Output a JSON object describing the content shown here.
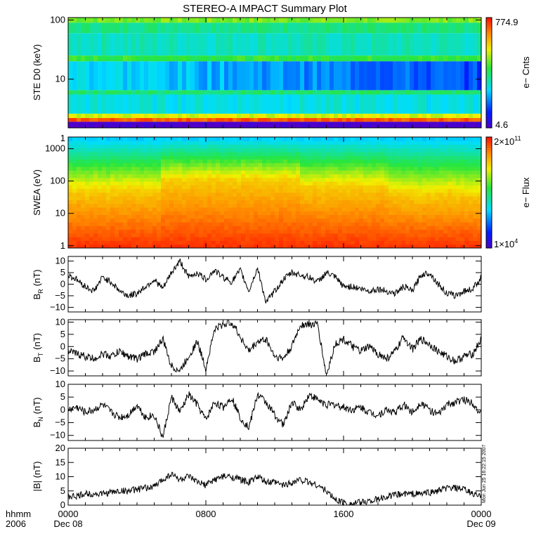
{
  "title": "STEREO-A IMPACT Summary Plot",
  "stamp": "Mon Jun 25 16:22:15 2007",
  "time_axis": {
    "row1_labels": [
      "hhmm",
      "0000",
      "0800",
      "1600",
      "0000"
    ],
    "row2_labels": [
      "2006",
      "Dec 08",
      "Dec 09"
    ],
    "range_hours": [
      0,
      24
    ]
  },
  "colors": {
    "trace": "#000000",
    "frame": "#000000"
  },
  "chart_data": [
    {
      "id": "ste",
      "type": "heatmap",
      "ylabel": "STE D0 (keV)",
      "yscale": "log",
      "ylim": [
        1.5,
        110
      ],
      "yticks": [
        "100",
        "10",
        "1"
      ],
      "ytick_values": [
        100,
        10,
        1
      ],
      "colorbar": {
        "label": "e− Cnts",
        "max_label": "774.9",
        "min_label": "4.6",
        "max": 774.9,
        "min": 4.6
      },
      "bands": [
        {
          "lo": 90,
          "hi": 110,
          "level": 0.62
        },
        {
          "lo": 60,
          "hi": 90,
          "level": 0.48
        },
        {
          "lo": 25,
          "hi": 60,
          "level": 0.42
        },
        {
          "lo": 20,
          "hi": 25,
          "level": 0.55
        },
        {
          "lo": 6.5,
          "hi": 20,
          "level": 0.25,
          "evolve": true
        },
        {
          "lo": 5.5,
          "hi": 6.5,
          "level": 0.5
        },
        {
          "lo": 2.6,
          "hi": 5.5,
          "level": 0.38
        },
        {
          "lo": 2.2,
          "hi": 2.6,
          "level": 0.7
        },
        {
          "lo": 1.9,
          "hi": 2.2,
          "level": 0.92
        },
        {
          "lo": 1.5,
          "hi": 1.9,
          "level": 0.0
        }
      ]
    },
    {
      "id": "swea",
      "type": "heatmap",
      "ylabel": "SWEA (eV)",
      "yscale": "log",
      "ylim": [
        0.85,
        2300
      ],
      "yticks": [
        "1000",
        "100",
        "10",
        "1"
      ],
      "ytick_values": [
        1000,
        100,
        10,
        1
      ],
      "colorbar": {
        "label": "e− Flux",
        "max_label": "2×10",
        "max_exp": "11",
        "min_label": "1×10",
        "min_exp": "4",
        "max": 200000000000.0,
        "min": 10000.0
      },
      "structure": [
        {
          "t": [
            0,
            5.5
          ],
          "peak_energy": 50
        },
        {
          "t": [
            5.5,
            13.5
          ],
          "peak_energy": 110
        },
        {
          "t": [
            13.5,
            18.5
          ],
          "peak_energy": 70
        },
        {
          "t": [
            18.5,
            24
          ],
          "peak_energy": 40
        }
      ]
    },
    {
      "id": "br",
      "type": "line",
      "ylabel": "B",
      "ylabel_sub": "R",
      "ylabel_unit": "(nT)",
      "ylim": [
        -12,
        12
      ],
      "yticks": [
        "10",
        "5",
        "0",
        "−5",
        "−10"
      ],
      "ytick_values": [
        10,
        5,
        0,
        -5,
        -10
      ],
      "x": [
        0,
        0.5,
        1,
        1.5,
        2,
        2.5,
        3,
        3.5,
        4,
        4.5,
        5,
        5.5,
        6,
        6.5,
        7,
        7.5,
        8,
        8.5,
        9,
        9.5,
        10,
        10.5,
        11,
        11.5,
        12,
        12.5,
        13,
        13.5,
        14,
        14.5,
        15,
        15.5,
        16,
        16.5,
        17,
        17.5,
        18,
        18.5,
        19,
        19.5,
        20,
        20.5,
        21,
        21.5,
        22,
        22.5,
        23,
        23.5,
        24
      ],
      "values": [
        4,
        2,
        -1,
        -3,
        3,
        1,
        -3,
        -5,
        -4,
        -1,
        2,
        -2,
        5,
        10,
        3,
        5,
        2,
        6,
        3,
        1,
        6,
        -3,
        7,
        -8,
        -3,
        2,
        5,
        4,
        3,
        1,
        5,
        3,
        -1,
        -1,
        -2,
        -3,
        -2,
        -3,
        -4,
        -1,
        -3,
        4,
        5,
        0,
        -4,
        -5,
        -3,
        -2,
        3
      ],
      "noise": 1.4
    },
    {
      "id": "bt",
      "type": "line",
      "ylabel": "B",
      "ylabel_sub": "T",
      "ylabel_unit": "(nT)",
      "ylim": [
        -12,
        11
      ],
      "yticks": [
        "10",
        "5",
        "0",
        "−5",
        "−10"
      ],
      "ytick_values": [
        10,
        5,
        0,
        -5,
        -10
      ],
      "x": [
        0,
        0.5,
        1,
        1.5,
        2,
        2.5,
        3,
        3.5,
        4,
        4.5,
        5,
        5.5,
        6,
        6.5,
        7,
        7.5,
        8,
        8.5,
        9,
        9.5,
        10,
        10.5,
        11,
        11.5,
        12,
        12.5,
        13,
        13.5,
        14,
        14.5,
        15,
        15.5,
        16,
        16.5,
        17,
        17.5,
        18,
        18.5,
        19,
        19.5,
        20,
        20.5,
        21,
        21.5,
        22,
        22.5,
        23,
        23.5,
        24
      ],
      "values": [
        -2,
        -3,
        -4,
        -5,
        -3,
        -4,
        -2,
        -4,
        -5,
        -3,
        -2,
        3,
        -8,
        -10,
        -4,
        2,
        -9,
        7,
        9,
        10,
        4,
        -2,
        2,
        3,
        -4,
        -5,
        0,
        9,
        9,
        9,
        -12,
        1,
        3,
        0,
        -2,
        0,
        -3,
        -5,
        -2,
        4,
        -1,
        3,
        1,
        -2,
        -4,
        -6,
        -4,
        -3,
        3
      ],
      "noise": 1.6
    },
    {
      "id": "bn",
      "type": "line",
      "ylabel": "B",
      "ylabel_sub": "N",
      "ylabel_unit": "(nT)",
      "ylim": [
        -12,
        10
      ],
      "yticks": [
        "10",
        "5",
        "0",
        "−5",
        "−10"
      ],
      "ytick_values": [
        10,
        5,
        0,
        -5,
        -10
      ],
      "x": [
        0,
        0.5,
        1,
        1.5,
        2,
        2.5,
        3,
        3.5,
        4,
        4.5,
        5,
        5.5,
        6,
        6.5,
        7,
        7.5,
        8,
        8.5,
        9,
        9.5,
        10,
        10.5,
        11,
        11.5,
        12,
        12.5,
        13,
        13.5,
        14,
        14.5,
        15,
        15.5,
        16,
        16.5,
        17,
        17.5,
        18,
        18.5,
        19,
        19.5,
        20,
        20.5,
        21,
        21.5,
        22,
        22.5,
        23,
        23.5,
        24
      ],
      "values": [
        0,
        1,
        -1,
        0,
        2,
        -1,
        -3,
        -2,
        2,
        -3,
        -2,
        -11,
        5,
        -1,
        6,
        2,
        -4,
        3,
        1,
        5,
        -3,
        -7,
        6,
        3,
        -2,
        -6,
        3,
        0,
        6,
        4,
        2,
        2,
        1,
        0,
        1,
        -1,
        -2,
        0,
        -1,
        2,
        -1,
        3,
        0,
        -2,
        2,
        3,
        4,
        3,
        -2
      ],
      "noise": 1.5
    },
    {
      "id": "bmag",
      "type": "line",
      "ylabel": "|B| (nT)",
      "ylim": [
        0,
        20
      ],
      "yticks": [
        "20",
        "15",
        "10",
        "5",
        "0"
      ],
      "ytick_values": [
        20,
        15,
        10,
        5,
        0
      ],
      "x": [
        0,
        0.5,
        1,
        1.5,
        2,
        2.5,
        3,
        3.5,
        4,
        4.5,
        5,
        5.5,
        6,
        6.5,
        7,
        7.5,
        8,
        8.5,
        9,
        9.5,
        10,
        10.5,
        11,
        11.5,
        12,
        12.5,
        13,
        13.5,
        14,
        14.5,
        15,
        15.5,
        16,
        16.5,
        17,
        17.5,
        18,
        18.5,
        19,
        19.5,
        20,
        20.5,
        21,
        21.5,
        22,
        22.5,
        23,
        23.5,
        24
      ],
      "values": [
        3,
        3,
        4,
        4,
        4,
        4.5,
        5,
        5,
        5.5,
        6,
        6.5,
        9,
        11,
        9,
        10,
        8,
        7,
        9,
        10,
        10,
        9,
        8,
        10,
        8,
        8,
        7,
        8,
        9,
        8,
        7,
        5,
        2,
        1,
        0.5,
        1,
        1.5,
        2,
        3,
        3.5,
        4,
        4,
        4,
        4.5,
        5,
        6,
        6,
        5.5,
        4,
        3
      ],
      "noise": 1.2
    }
  ]
}
